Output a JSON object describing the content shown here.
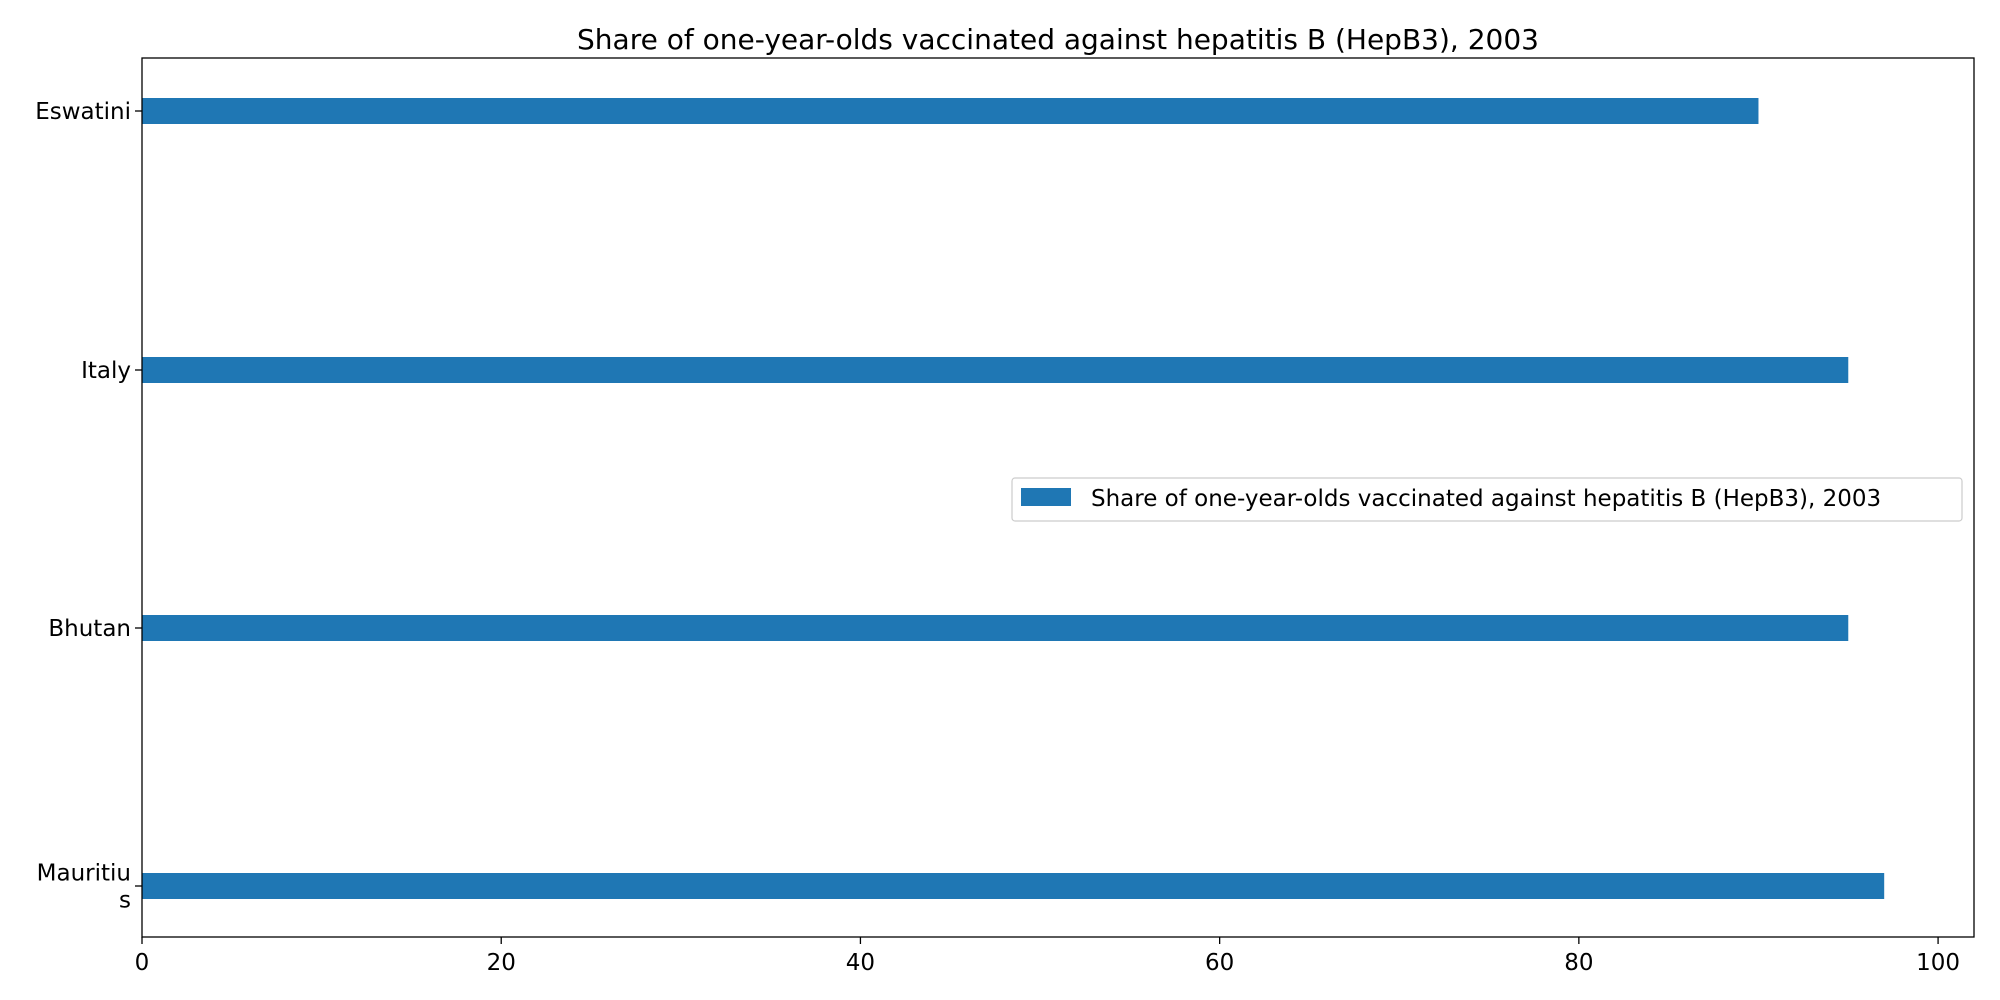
{
  "chart_data": {
    "type": "bar",
    "orientation": "horizontal",
    "title": "Share of one-year-olds vaccinated against hepatitis B (HepB3), 2003",
    "xlabel": "",
    "ylabel": "",
    "categories": [
      "Eswatini",
      "Italy",
      "Bhutan",
      "Mauritius"
    ],
    "category_tick_labels": [
      [
        "Eswatini"
      ],
      [
        "Italy"
      ],
      [
        "Bhutan"
      ],
      [
        "Mauritiu",
        "s"
      ]
    ],
    "series": [
      {
        "name": "Share of one-year-olds vaccinated against hepatitis B (HepB3), 2003",
        "values": [
          90,
          95,
          95,
          97
        ],
        "color": "#1f77b4"
      }
    ],
    "xlim": [
      0,
      102
    ],
    "xticks": [
      0,
      20,
      40,
      60,
      80,
      100
    ],
    "xtick_labels": [
      "0",
      "20",
      "40",
      "60",
      "80",
      "100"
    ],
    "grid": false,
    "legend_position": "center-right"
  }
}
